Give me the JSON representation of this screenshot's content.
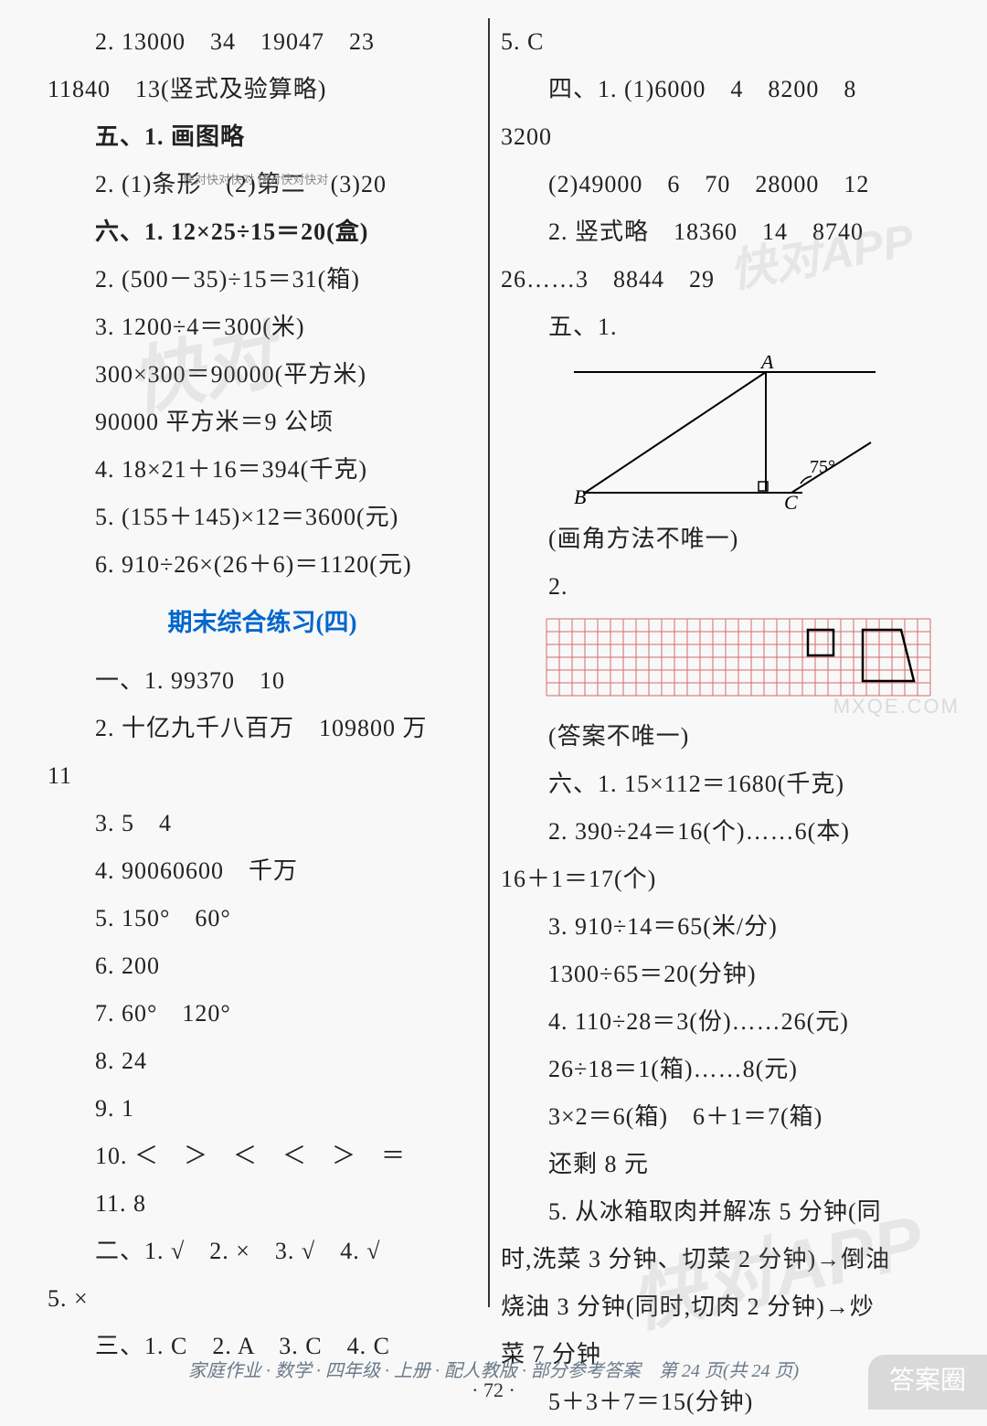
{
  "left": {
    "l1": "2. 13000　34　19047　23",
    "l2": "11840　13(竖式及验算略)",
    "l3": "五、1. 画图略",
    "l4": "2. (1)条形　(2)第二　(3)20",
    "l5": "六、1. 12×25÷15＝20(盒)",
    "l6": "2. (500－35)÷15＝31(箱)",
    "l7": "3. 1200÷4＝300(米)",
    "l8": "300×300＝90000(平方米)",
    "l9": "90000 平方米＝9 公顷",
    "l10": "4. 18×21＋16＝394(千克)",
    "l11": "5. (155＋145)×12＝3600(元)",
    "l12": "6. 910÷26×(26＋6)＝1120(元)",
    "title": "期末综合练习(四)",
    "l13": "一、1. 99370　10",
    "l14": "2. 十亿九千八百万　109800 万",
    "l15": "11",
    "l16": "3. 5　4",
    "l17": "4. 90060600　千万",
    "l18": "5. 150°　60°",
    "l19": "6. 200",
    "l20": "7. 60°　120°",
    "l21": "8. 24",
    "l22": "9. 1",
    "l23": "10. ＜　＞　＜　＜　＞　＝",
    "l24": "11. 8",
    "l25": "二、1. √　2. ×　3. √　4. √",
    "l26": "5. ×",
    "l27": "三、1. C　2. A　3. C　4. C"
  },
  "right": {
    "r1": "5. C",
    "r2": "四、1. (1)6000　4　8200　8",
    "r3": "3200",
    "r4": "(2)49000　6　70　28000　12",
    "r5": "2. 竖式略　18360　14　8740",
    "r6": "26……3　8844　29",
    "r7": "五、1.",
    "geom": {
      "A": "A",
      "B": "B",
      "C": "C",
      "angle": "75°",
      "stroke": "#000000",
      "ticksize": 6
    },
    "r8": "(画角方法不唯一)",
    "r9": "2.",
    "grid": {
      "cols": 30,
      "rows": 6,
      "cell": 14,
      "stroke": "#d46a6a",
      "shape_fill": "none",
      "shape_stroke": "#000"
    },
    "r10": "(答案不唯一)",
    "r11": "六、1. 15×112＝1680(千克)",
    "r12": "2. 390÷24＝16(个)……6(本)",
    "r13": "16＋1＝17(个)",
    "r14": "3. 910÷14＝65(米/分)",
    "r15": "1300÷65＝20(分钟)",
    "r16": "4. 110÷28＝3(份)……26(元)",
    "r17": "26÷18＝1(箱)……8(元)",
    "r18": "3×2＝6(箱)　6＋1＝7(箱)",
    "r19": "还剩 8 元",
    "r20": "5. 从冰箱取肉并解冻 5 分钟(同",
    "r21": "时,洗菜 3 分钟、切菜 2 分钟)→倒油",
    "r22": "烧油 3 分钟(同时,切肉 2 分钟)→炒",
    "r23": "菜 7 分钟",
    "r24": "5＋3＋7＝15(分钟)"
  },
  "footer": "家庭作业 · 数学 · 四年级 · 上册 · 配人教版 · 部分参考答案　第 24 页(共 24 页)",
  "pagenum": "·  72  ·",
  "watermark": "快对APP",
  "watermark2": "快对",
  "mxqe": "MXQE.COM",
  "daquan": "答案圈",
  "smallwm": "快对快对快对\n快对快对快对"
}
